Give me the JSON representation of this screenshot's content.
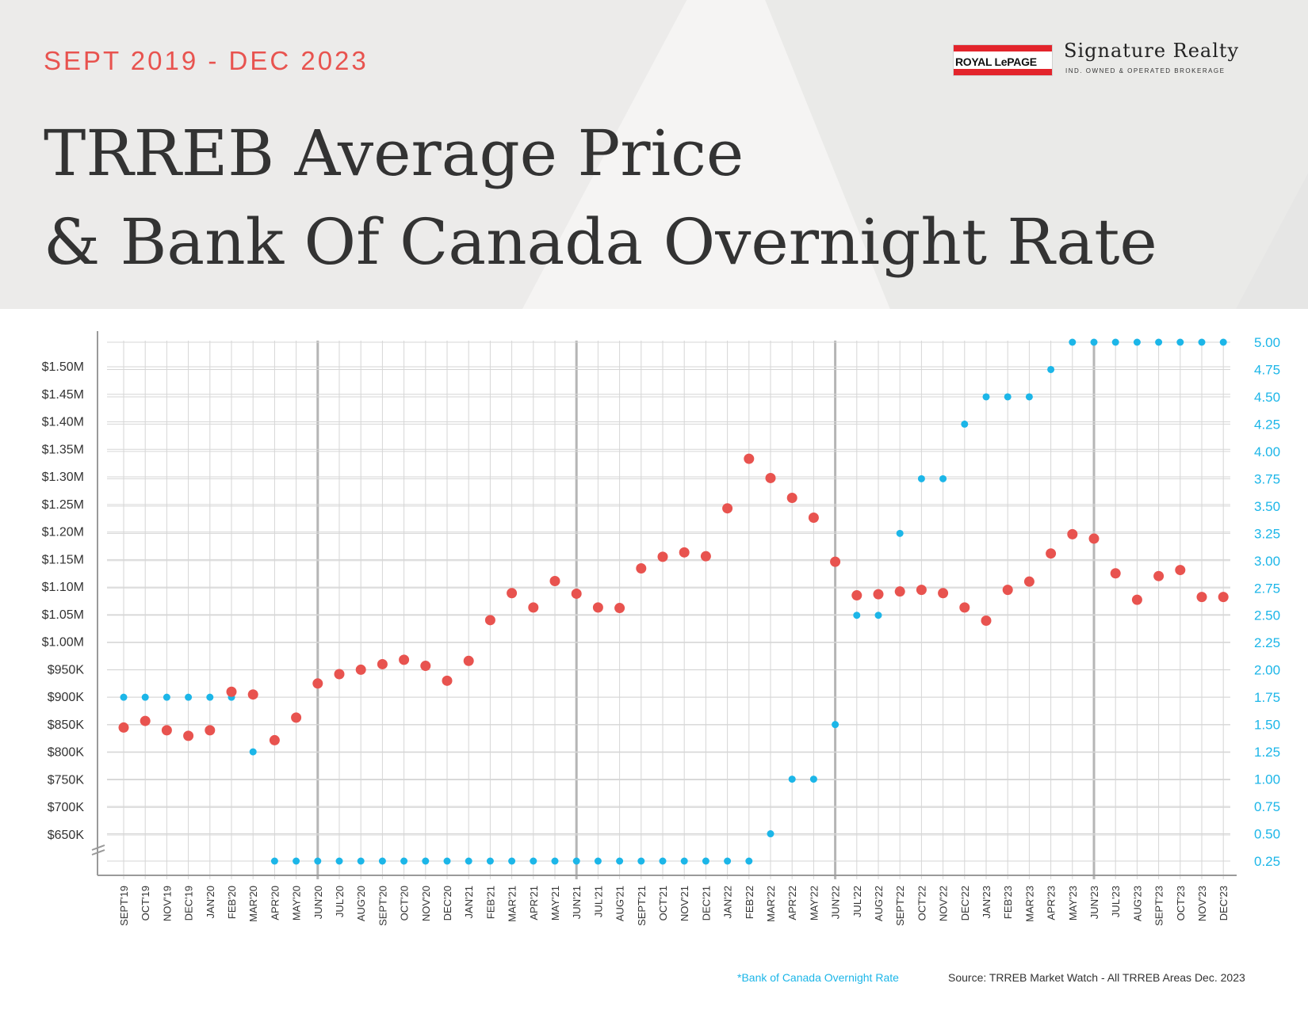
{
  "header": {
    "subtitle": "SEPT 2019 - DEC 2023",
    "title_line1": "TRREB Average Price",
    "title_line2": "& Bank Of Canada Overnight Rate"
  },
  "logo": {
    "royal_lepage": "ROYAL LePAGE",
    "brand_name": "Signature Realty",
    "tagline": "IND. OWNED & OPERATED BROKERAGE"
  },
  "footer": {
    "rate_note": "*Bank of Canada Overnight Rate",
    "source": "Source: TRREB Market Watch - All TRREB Areas Dec. 2023"
  },
  "colors": {
    "price": "#e8534f",
    "rate": "#1cb6e8",
    "subtitle": "#e8534f"
  },
  "chart_data": {
    "type": "scatter",
    "x": [
      "SEPT'19",
      "OCT'19",
      "NOV'19",
      "DEC'19",
      "JAN'20",
      "FEB'20",
      "MAR'20",
      "APR'20",
      "MAY'20",
      "JUN'20",
      "JUL'20",
      "AUG'20",
      "SEPT'20",
      "OCT'20",
      "NOV'20",
      "DEC'20",
      "JAN'21",
      "FEB'21",
      "MAR'21",
      "APR'21",
      "MAY'21",
      "JUN'21",
      "JUL'21",
      "AUG'21",
      "SEPT'21",
      "OCT'21",
      "NOV'21",
      "DEC'21",
      "JAN'22",
      "FEB'22",
      "MAR'22",
      "APR'22",
      "MAY'22",
      "JUN'22",
      "JUL'22",
      "AUG'22",
      "SEPT'22",
      "OCT'22",
      "NOV'22",
      "DEC'22",
      "JAN'23",
      "FEB'23",
      "MAR'23",
      "APR'23",
      "MAY'23",
      "JUN'23",
      "JUL'23",
      "AUG'23",
      "SEPT'23",
      "OCT'23",
      "NOV'23",
      "DEC'23"
    ],
    "series": [
      {
        "name": "TRREB Average Price",
        "axis": "left",
        "values": [
          845000,
          857000,
          840000,
          830000,
          840000,
          910000,
          905000,
          822000,
          863000,
          925000,
          942000,
          950000,
          960000,
          968000,
          957000,
          930000,
          966000,
          1040000,
          1089000,
          1063000,
          1111000,
          1088000,
          1063000,
          1062000,
          1134000,
          1155000,
          1163000,
          1156000,
          1243000,
          1333000,
          1298000,
          1262000,
          1226000,
          1146000,
          1085000,
          1087000,
          1092000,
          1095000,
          1089000,
          1063000,
          1039000,
          1095000,
          1110000,
          1161000,
          1196000,
          1188000,
          1125000,
          1077000,
          1120000,
          1131000,
          1082000,
          1082000
        ]
      },
      {
        "name": "Bank of Canada Overnight Rate",
        "axis": "right",
        "values": [
          1.75,
          1.75,
          1.75,
          1.75,
          1.75,
          1.75,
          1.25,
          0.25,
          0.25,
          0.25,
          0.25,
          0.25,
          0.25,
          0.25,
          0.25,
          0.25,
          0.25,
          0.25,
          0.25,
          0.25,
          0.25,
          0.25,
          0.25,
          0.25,
          0.25,
          0.25,
          0.25,
          0.25,
          0.25,
          0.25,
          0.5,
          1.0,
          1.0,
          1.5,
          2.5,
          2.5,
          3.25,
          3.75,
          3.75,
          4.25,
          4.5,
          4.5,
          4.5,
          4.75,
          5.0,
          5.0,
          5.0,
          5.0,
          5.0,
          5.0,
          5.0,
          5.0
        ]
      }
    ],
    "left_ticks": [
      "$650K",
      "$700K",
      "$750K",
      "$800K",
      "$850K",
      "$900K",
      "$950K",
      "$1.00M",
      "$1.05M",
      "$1.10M",
      "$1.15M",
      "$1.20M",
      "$1.25M",
      "$1.30M",
      "$1.35M",
      "$1.40M",
      "$1.45M",
      "$1.50M"
    ],
    "left_tick_values": [
      650000,
      700000,
      750000,
      800000,
      850000,
      900000,
      950000,
      1000000,
      1050000,
      1100000,
      1150000,
      1200000,
      1250000,
      1300000,
      1350000,
      1400000,
      1450000,
      1500000
    ],
    "right_ticks": [
      "0.25",
      "0.50",
      "0.75",
      "1.00",
      "1.25",
      "1.50",
      "1.75",
      "2.00",
      "2.25",
      "2.50",
      "2.75",
      "3.00",
      "3.25",
      "3.50",
      "3.75",
      "4.00",
      "4.25",
      "4.50",
      "4.75",
      "5.00"
    ],
    "right_tick_values": [
      0.25,
      0.5,
      0.75,
      1.0,
      1.25,
      1.5,
      1.75,
      2.0,
      2.25,
      2.5,
      2.75,
      3.0,
      3.25,
      3.5,
      3.75,
      4.0,
      4.25,
      4.5,
      4.75,
      5.0
    ],
    "left_axis_break": true,
    "emphasized_gridlines": [
      "JUN'20",
      "JUN'21",
      "JUN'22",
      "JUN'23"
    ],
    "grid": true,
    "legend": "none"
  }
}
